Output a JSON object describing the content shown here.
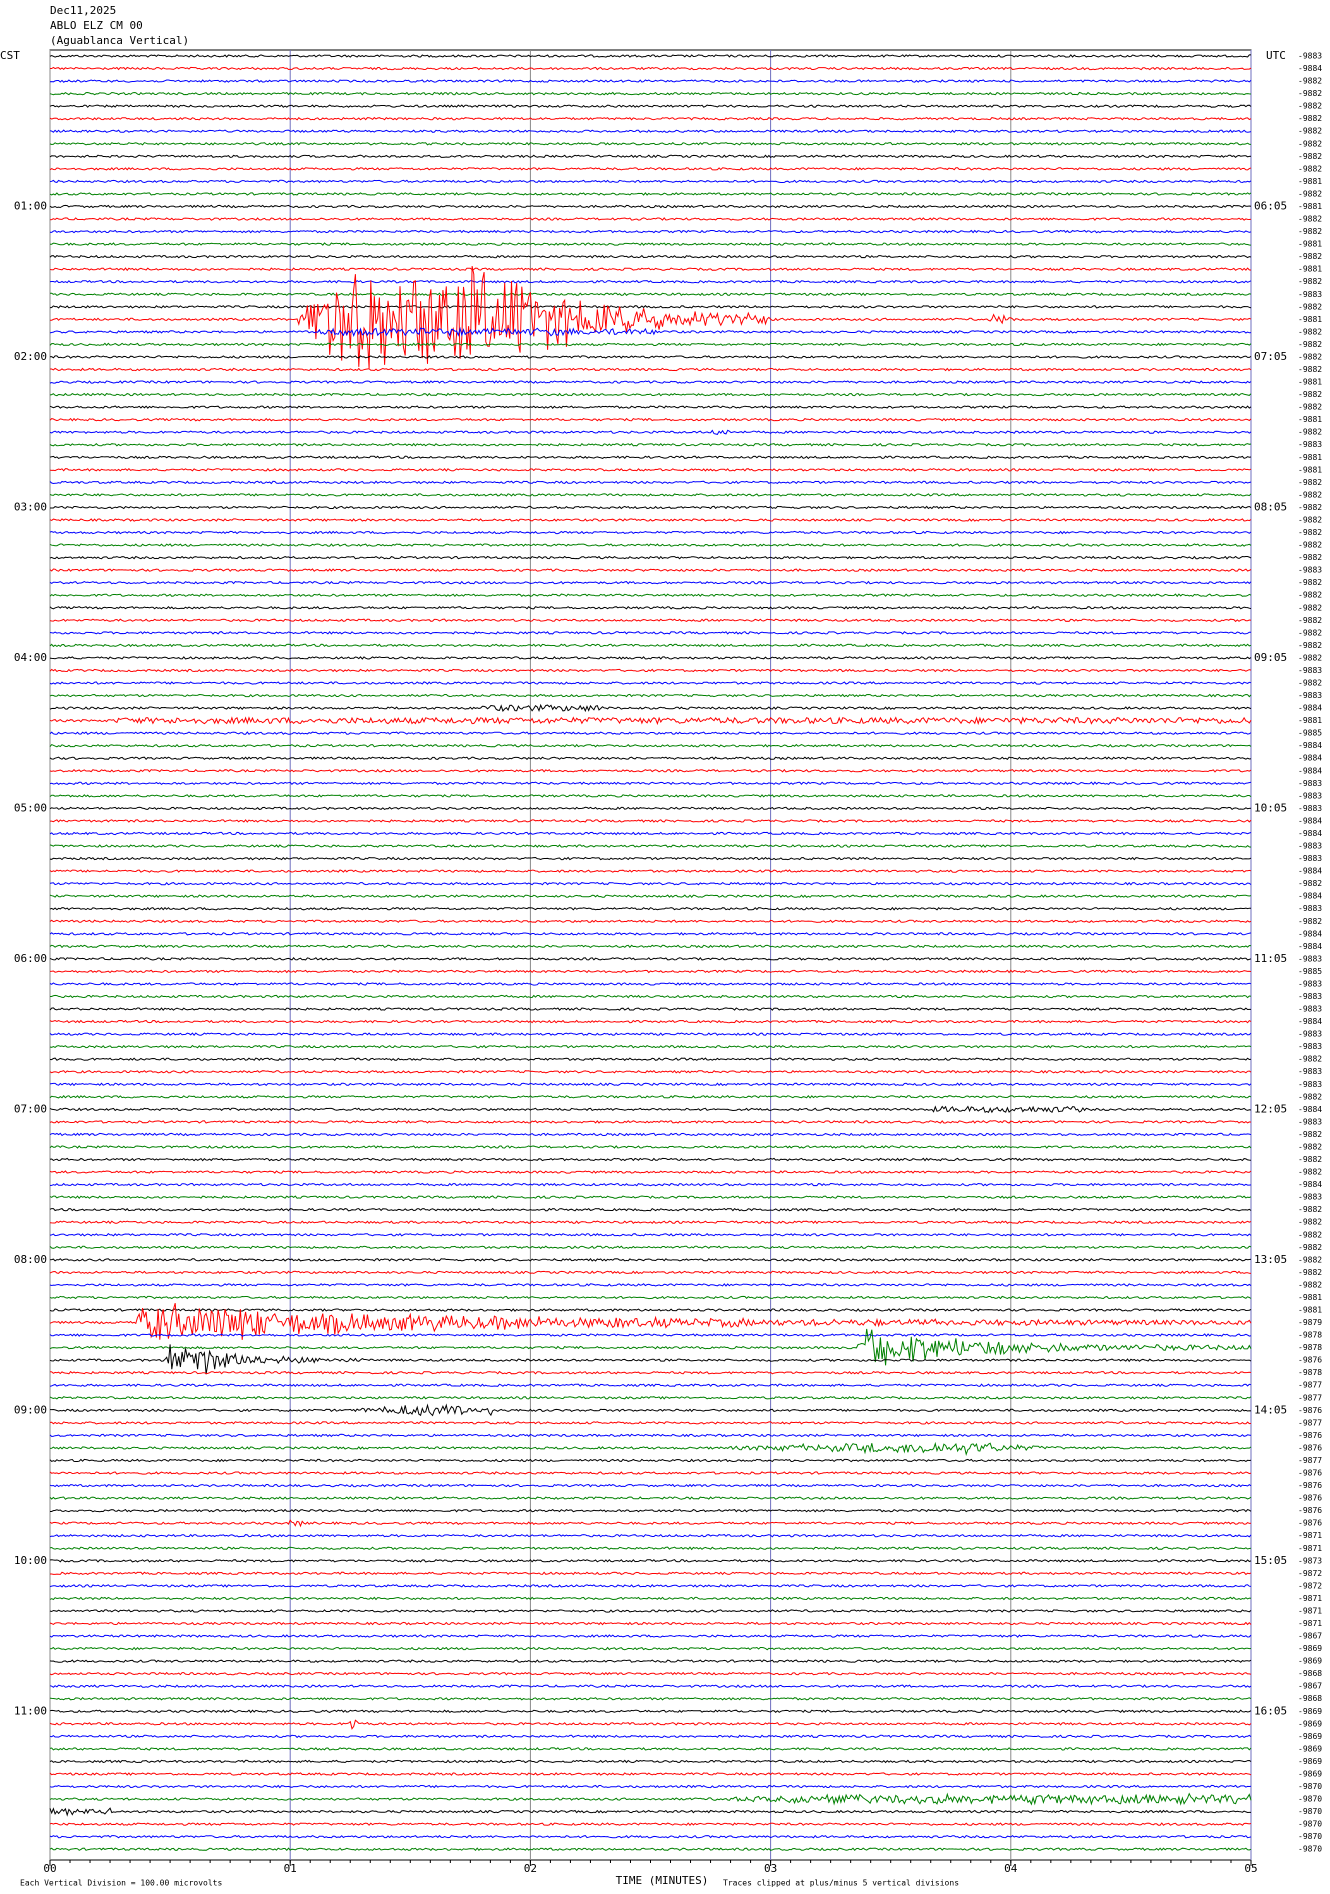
{
  "header": {
    "date": "Dec11,2025",
    "station": "ABLO ELZ CM 00",
    "location": "(Aguablanca Vertical)"
  },
  "left_axis": {
    "title": "CST",
    "labels": [
      "01:00",
      "02:00",
      "03:00",
      "04:00",
      "05:00",
      "06:00",
      "07:00",
      "08:00",
      "09:00",
      "10:00",
      "11:00"
    ]
  },
  "right_axis": {
    "title": "UTC",
    "labels": [
      "06:05",
      "07:05",
      "08:05",
      "09:05",
      "10:05",
      "11:05",
      "12:05",
      "13:05",
      "14:05",
      "15:05",
      "16:05"
    ]
  },
  "trace_colors": [
    "#000000",
    "#ff0000",
    "#0000ff",
    "#008000"
  ],
  "trace_offsets": [
    -9883,
    -9884,
    -9882,
    -9882,
    -9882,
    -9882,
    -9882,
    -9882,
    -9882,
    -9882,
    -9881,
    -9882,
    -9881,
    -9882,
    -9882,
    -9881,
    -9882,
    -9881,
    -9882,
    -9883,
    -9882,
    -9881,
    -9882,
    -9882,
    -9882,
    -9882,
    -9881,
    -9882,
    -9882,
    -9881,
    -9882,
    -9883,
    -9881,
    -9881,
    -9882,
    -9882,
    -9882,
    -9882,
    -9882,
    -9882,
    -9882,
    -9883,
    -9882,
    -9882,
    -9882,
    -9882,
    -9882,
    -9882,
    -9882,
    -9883,
    -9882,
    -9883,
    -9884,
    -9881,
    -9885,
    -9884,
    -9884,
    -9884,
    -9883,
    -9883,
    -9883,
    -9884,
    -9884,
    -9883,
    -9883,
    -9884,
    -9882,
    -9884,
    -9883,
    -9882,
    -9884,
    -9884,
    -9883,
    -9885,
    -9883,
    -9883,
    -9883,
    -9884,
    -9883,
    -9883,
    -9882,
    -9883,
    -9883,
    -9882,
    -9884,
    -9883,
    -9882,
    -9882,
    -9882,
    -9882,
    -9884,
    -9883,
    -9882,
    -9882,
    -9882,
    -9882,
    -9882,
    -9882,
    -9882,
    -9881,
    -9881,
    -9879,
    -9878,
    -9878,
    -9876,
    -9878,
    -9877,
    -9877,
    -9876,
    -9877,
    -9876,
    -9876,
    -9877,
    -9876,
    -9876,
    -9876,
    -9876,
    -9876,
    -9871,
    -9871,
    -9873,
    -9872,
    -9872,
    -9871,
    -9871,
    -9871,
    -9867,
    -9869,
    -9869,
    -9868,
    -9867,
    -9868,
    -9869,
    -9869,
    -9869,
    -9869,
    -9869,
    -9869,
    -9870,
    -9870,
    -9870,
    -9870,
    -9870,
    -9870
  ],
  "x_axis": {
    "title": "TIME (MINUTES)",
    "range": [
      0,
      5
    ],
    "ticks": [
      {
        "value": 0,
        "label": "00"
      },
      {
        "value": 1,
        "label": "01"
      },
      {
        "value": 2,
        "label": "02"
      },
      {
        "value": 3,
        "label": "03"
      },
      {
        "value": 4,
        "label": "04"
      },
      {
        "value": 5,
        "label": "05"
      }
    ]
  },
  "footer": {
    "scale": "Each Vertical Division =  100.00 microvolts",
    "clip": "Traces clipped at plus/minus 5 vertical divisions"
  }
}
